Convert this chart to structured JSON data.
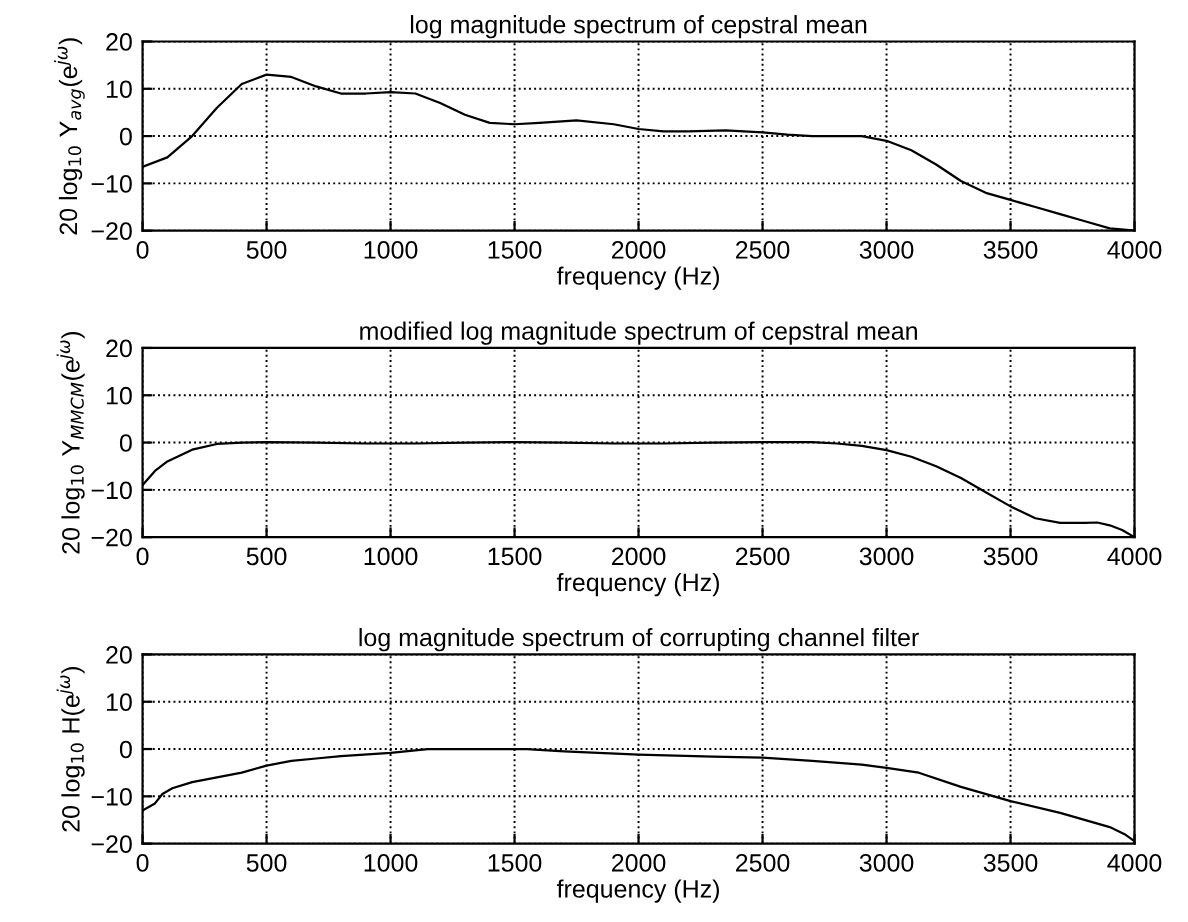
{
  "chart_data": [
    {
      "type": "line",
      "title": "log magnitude spectrum of cepstral mean",
      "xlabel": "frequency (Hz)",
      "ylabel": "20 log$_{10}$ Y$_{avg}$(e$^{jω}$)",
      "xlim": [
        0,
        4000
      ],
      "ylim": [
        -20,
        20
      ],
      "xticks": [
        0,
        500,
        1000,
        1500,
        2000,
        2500,
        3000,
        3500,
        4000
      ],
      "yticks": [
        -20,
        -10,
        0,
        10,
        20
      ],
      "grid": true,
      "line_style": "solid",
      "series": [
        {
          "color": "#000000",
          "x": [
            0,
            100,
            200,
            300,
            400,
            500,
            600,
            700,
            800,
            900,
            1000,
            1100,
            1200,
            1300,
            1400,
            1500,
            1600,
            1750,
            1900,
            2000,
            2100,
            2200,
            2350,
            2500,
            2600,
            2700,
            2800,
            2900,
            3000,
            3100,
            3200,
            3300,
            3400,
            3500,
            3600,
            3700,
            3800,
            3900,
            4000
          ],
          "values": [
            -6.5,
            -4.5,
            0,
            6,
            11,
            13,
            12.5,
            10.5,
            9,
            9,
            9.3,
            9,
            7,
            4.5,
            2.8,
            2.5,
            2.8,
            3.3,
            2.5,
            1.5,
            1,
            1,
            1.2,
            0.8,
            0.3,
            0,
            0,
            0,
            -1,
            -3,
            -6,
            -9.5,
            -12,
            -13.5,
            -15,
            -16.5,
            -18,
            -19.5,
            -20
          ]
        }
      ]
    },
    {
      "type": "line",
      "title": "modified log magnitude spectrum of cepstral mean",
      "xlabel": "frequency (Hz)",
      "ylabel": "20 log$_{10}$ Y$_{MMCM}$(e$^{jω}$)",
      "xlim": [
        0,
        4000
      ],
      "ylim": [
        -20,
        20
      ],
      "xticks": [
        0,
        500,
        1000,
        1500,
        2000,
        2500,
        3000,
        3500,
        4000
      ],
      "yticks": [
        -20,
        -10,
        0,
        10,
        20
      ],
      "grid": true,
      "line_style": "solid",
      "series": [
        {
          "color": "#000000",
          "x": [
            0,
            50,
            100,
            200,
            300,
            400,
            500,
            700,
            900,
            1100,
            1300,
            1500,
            1700,
            1900,
            2100,
            2300,
            2500,
            2700,
            2800,
            2900,
            3000,
            3100,
            3200,
            3300,
            3400,
            3500,
            3600,
            3700,
            3800,
            3850,
            3900,
            3950,
            4000
          ],
          "values": [
            -9,
            -6,
            -4,
            -1.5,
            -0.3,
            0,
            0.1,
            0,
            -0.2,
            -0.2,
            0,
            0.1,
            0,
            -0.2,
            -0.2,
            0,
            0.1,
            0.1,
            -0.2,
            -0.7,
            -1.6,
            -3,
            -5,
            -7.5,
            -10.5,
            -13.5,
            -16,
            -17,
            -17,
            -16.9,
            -17.5,
            -18.5,
            -20
          ]
        }
      ]
    },
    {
      "type": "line",
      "title": "log magnitude spectrum of corrupting channel filter",
      "xlabel": "frequency (Hz)",
      "ylabel": "20 log$_{10}$ H(e$^{jω}$)",
      "xlim": [
        0,
        4000
      ],
      "ylim": [
        -20,
        20
      ],
      "xticks": [
        0,
        500,
        1000,
        1500,
        2000,
        2500,
        3000,
        3500,
        4000
      ],
      "yticks": [
        -20,
        -10,
        0,
        10,
        20
      ],
      "grid": true,
      "line_style": "solid",
      "series": [
        {
          "color": "#000000",
          "x": [
            0,
            50,
            80,
            120,
            200,
            300,
            400,
            500,
            600,
            700,
            800,
            1000,
            1150,
            1300,
            1550,
            1700,
            2000,
            2300,
            2500,
            2700,
            2900,
            3000,
            3130,
            3300,
            3500,
            3700,
            3900,
            3960,
            4000
          ],
          "values": [
            -13,
            -11.5,
            -9.5,
            -8.3,
            -7,
            -6,
            -5,
            -3.5,
            -2.5,
            -2,
            -1.5,
            -0.8,
            0,
            0,
            0,
            -0.5,
            -1.2,
            -1.6,
            -1.8,
            -2.5,
            -3.3,
            -4,
            -5,
            -8,
            -11,
            -13.5,
            -16.5,
            -18,
            -19.5
          ]
        }
      ]
    }
  ]
}
